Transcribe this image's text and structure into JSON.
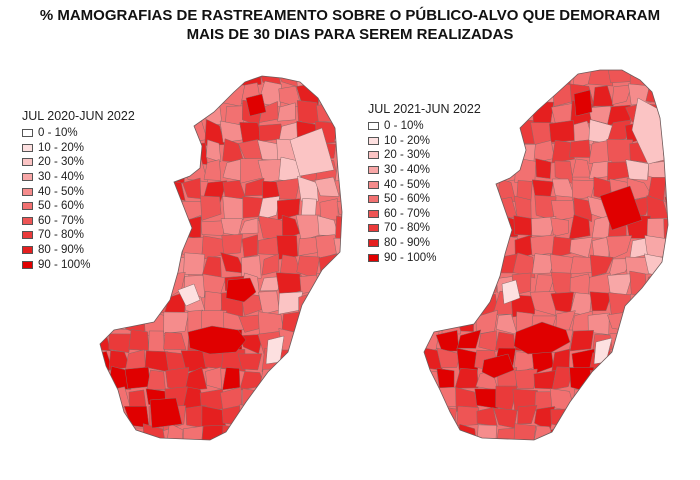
{
  "title": {
    "line1": "% MAMOGRAFIAS DE RASTREAMENTO SOBRE O PÚBLICO-ALVO QUE DEMORARAM",
    "line2": "MAIS DE 30 DIAS PARA SEREM REALIZADAS"
  },
  "legend_classes": [
    "0 - 10%",
    "10 - 20%",
    "20 - 30%",
    "30 - 40%",
    "40 - 50%",
    "50 - 60%",
    "60 - 70%",
    "70 - 80%",
    "80 - 90%",
    "90 - 100%"
  ],
  "legend_colors": [
    "#ffffff",
    "#fde0e0",
    "#fbc4c4",
    "#f8a7a7",
    "#f58c8c",
    "#f27171",
    "#ee5555",
    "#ea3a3a",
    "#e51f1f",
    "#e00000"
  ],
  "maps": [
    {
      "name": "map-2020-2022",
      "legend_title": "JUL 2020-JUN 2022"
    },
    {
      "name": "map-2021-2022",
      "legend_title": "JUL 2021-JUN 2022"
    }
  ]
}
